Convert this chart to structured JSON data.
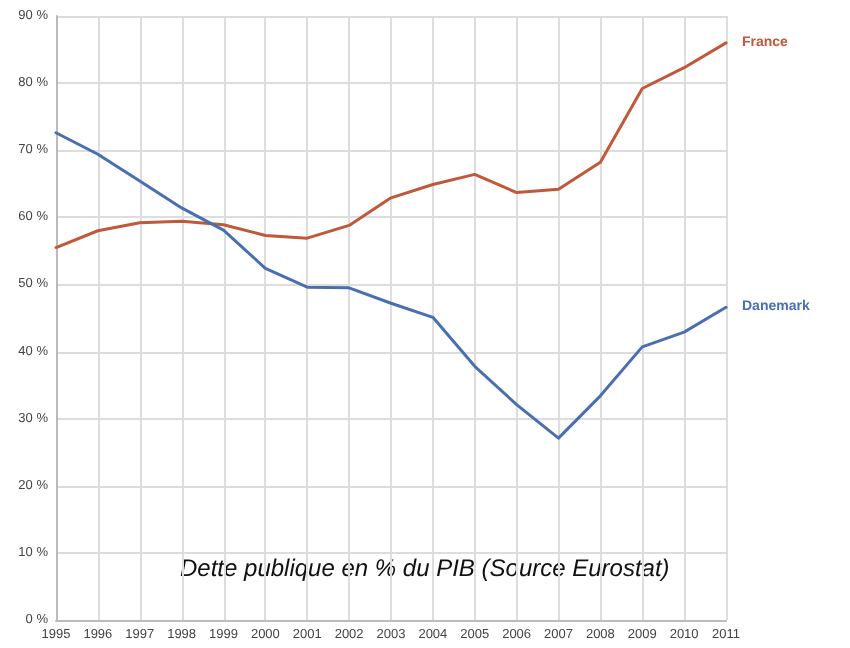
{
  "chart_data": {
    "type": "line",
    "categories": [
      "1995",
      "1996",
      "1997",
      "1998",
      "1999",
      "2000",
      "2001",
      "2002",
      "2003",
      "2004",
      "2005",
      "2006",
      "2007",
      "2008",
      "2009",
      "2010",
      "2011"
    ],
    "series": [
      {
        "name": "France",
        "color": "#c0583a",
        "values": [
          55.5,
          58,
          59.2,
          59.4,
          58.9,
          57.3,
          56.9,
          58.8,
          62.9,
          64.9,
          66.4,
          63.7,
          64.2,
          68.2,
          79.2,
          82.3,
          86.0
        ]
      },
      {
        "name": "Danemark",
        "color": "#4a6fb0",
        "values": [
          72.6,
          69.4,
          65.4,
          61.4,
          58.1,
          52.4,
          49.6,
          49.5,
          47.2,
          45.1,
          37.8,
          32.1,
          27.1,
          33.4,
          40.7,
          42.9,
          46.6
        ]
      }
    ],
    "ylim": [
      0,
      90
    ],
    "yticks": [
      {
        "value": 0,
        "label": "0 %"
      },
      {
        "value": 10,
        "label": "10 %"
      },
      {
        "value": 20,
        "label": "20 %"
      },
      {
        "value": 30,
        "label": "30 %"
      },
      {
        "value": 40,
        "label": "40 %"
      },
      {
        "value": 50,
        "label": "50 %"
      },
      {
        "value": 60,
        "label": "60 %"
      },
      {
        "value": 70,
        "label": "70 %"
      },
      {
        "value": 80,
        "label": "80 %"
      },
      {
        "value": 90,
        "label": "90 %"
      }
    ],
    "grid": true,
    "marker": "none",
    "line_style": "solid",
    "annotations": [
      "Dette publique en % du PIB (Source Eurostat)"
    ]
  }
}
